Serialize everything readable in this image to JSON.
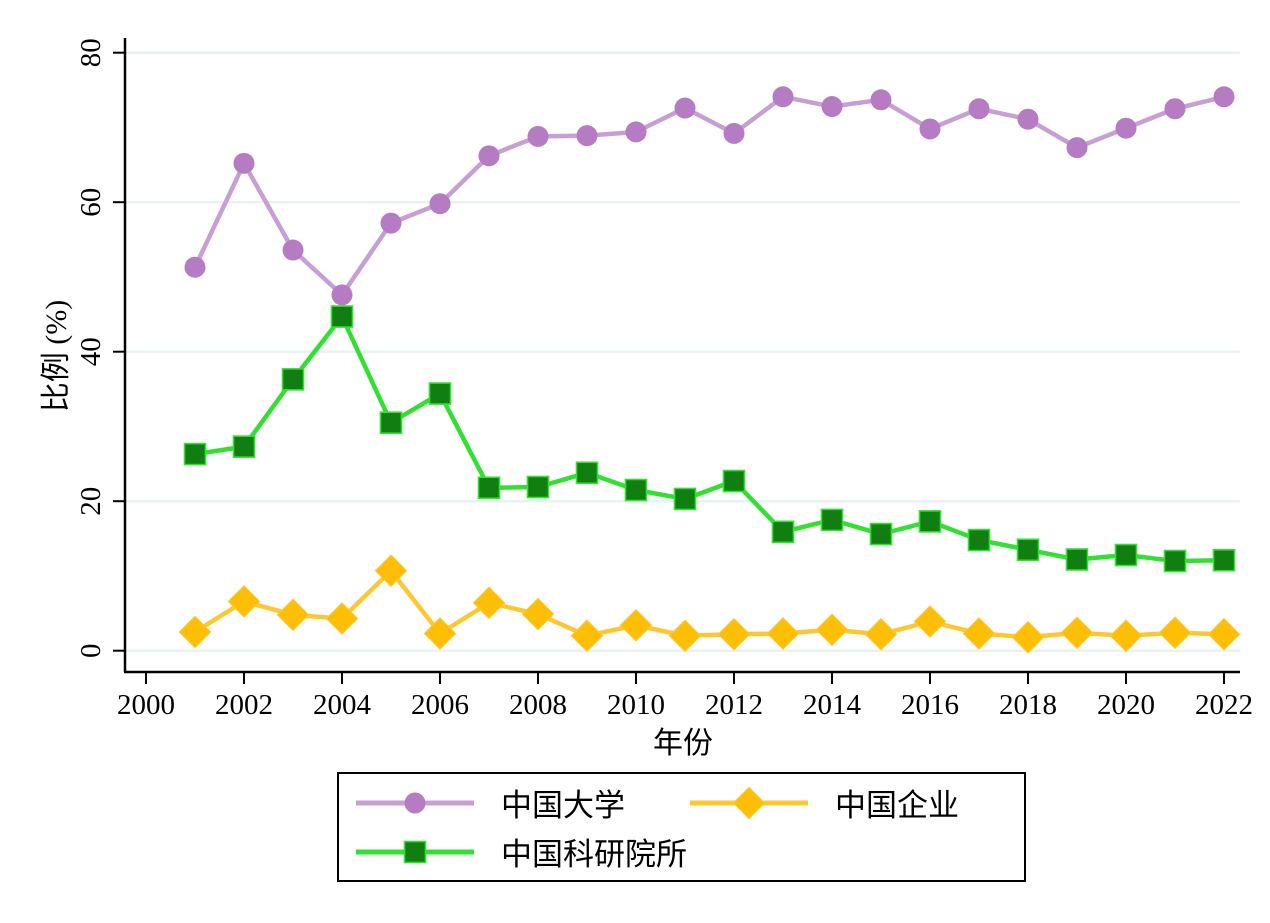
{
  "figure": {
    "y_axis_title": "比例 (%)",
    "x_axis_title": "年份",
    "background_color": "#ffffff",
    "grid_color": "#e9f2f3",
    "axis_color": "#000000"
  },
  "chart_data": {
    "type": "line",
    "x": [
      2001,
      2002,
      2003,
      2004,
      2005,
      2006,
      2007,
      2008,
      2009,
      2010,
      2011,
      2012,
      2013,
      2014,
      2015,
      2016,
      2017,
      2018,
      2019,
      2020,
      2021,
      2022
    ],
    "x_ticks": [
      2000,
      2002,
      2004,
      2006,
      2008,
      2010,
      2012,
      2014,
      2016,
      2018,
      2020,
      2022
    ],
    "y_ticks": [
      0,
      20,
      40,
      60,
      80
    ],
    "xlim": [
      1999.6,
      2022.3
    ],
    "ylim": [
      0,
      80
    ],
    "grid": "horizontal",
    "title": "",
    "xlabel": "年份",
    "ylabel": "比例 (%)",
    "legend_position": "bottom",
    "series": [
      {
        "name": "中国大学",
        "marker": "circle",
        "line_color": "#c79fd4",
        "marker_color": "#b57cc4",
        "values": [
          51.3,
          65.2,
          53.6,
          47.6,
          57.2,
          59.8,
          66.2,
          68.8,
          68.9,
          69.4,
          72.6,
          69.2,
          74.1,
          72.8,
          73.7,
          69.8,
          72.5,
          71.1,
          67.3,
          69.9,
          72.5,
          74.1
        ]
      },
      {
        "name": "中国科研院所",
        "marker": "square",
        "line_color": "#31e031",
        "marker_color": "#117e11",
        "values": [
          26.3,
          27.3,
          36.3,
          44.7,
          30.5,
          34.4,
          21.8,
          21.9,
          23.8,
          21.5,
          20.3,
          22.7,
          15.9,
          17.5,
          15.6,
          17.3,
          14.8,
          13.5,
          12.2,
          12.8,
          12.0,
          12.1
        ]
      },
      {
        "name": "中国企业",
        "marker": "diamond",
        "line_color": "#fdc731",
        "marker_color": "#fcbf05",
        "values": [
          2.5,
          6.6,
          4.8,
          4.3,
          10.7,
          2.3,
          6.4,
          4.9,
          2.0,
          3.4,
          2.0,
          2.2,
          2.3,
          2.8,
          2.2,
          3.9,
          2.3,
          1.8,
          2.4,
          2.0,
          2.4,
          2.2
        ]
      }
    ],
    "legend_order_series_indices": [
      0,
      2,
      1
    ]
  }
}
